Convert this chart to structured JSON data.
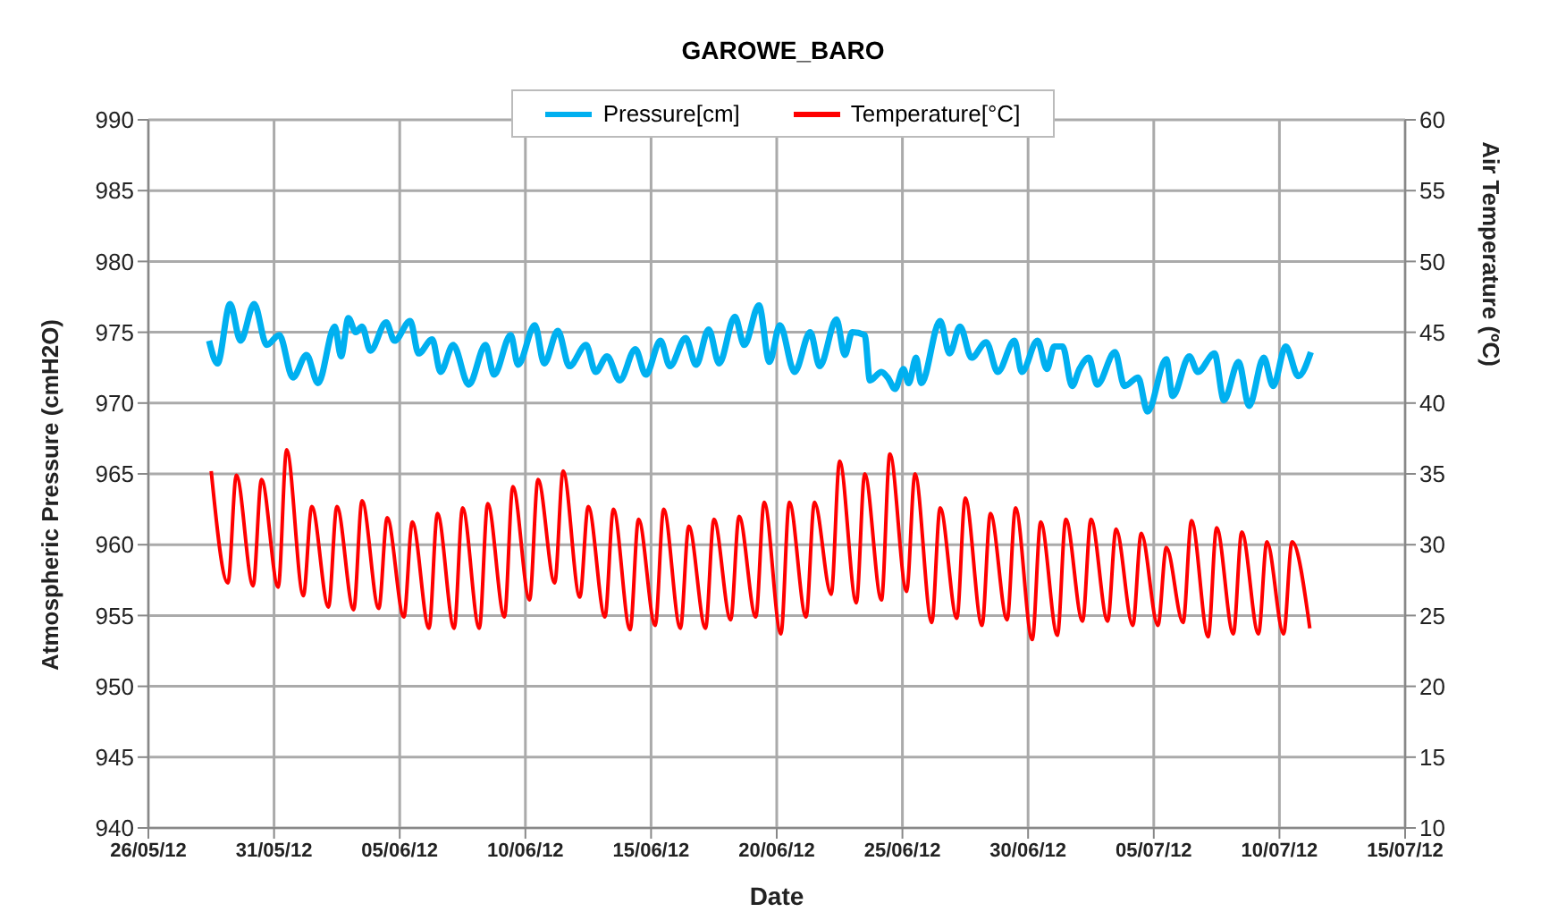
{
  "chart_data": {
    "type": "line",
    "title": "GAROWE_BARO",
    "xlabel": "Date",
    "ylabel": "Atmospheric  Pressure (cmH2O)",
    "y2label": "Air Temperature (ºC)",
    "xlim": [
      "--05-26",
      "--07-15"
    ],
    "xticks": [
      {
        "value": "--05-26",
        "label": "26/05/12"
      },
      {
        "value": "--05-31",
        "label": "31/05/12"
      },
      {
        "value": "--06-05",
        "label": "05/06/12"
      },
      {
        "value": "--06-10",
        "label": "10/06/12"
      },
      {
        "value": "--06-15",
        "label": "15/06/12"
      },
      {
        "value": "--06-20",
        "label": "20/06/12"
      },
      {
        "value": "--06-25",
        "label": "25/06/12"
      },
      {
        "value": "--06-30",
        "label": "30/06/12"
      },
      {
        "value": "--07-05",
        "label": "05/07/12"
      },
      {
        "value": "--07-10",
        "label": "10/07/12"
      },
      {
        "value": "--07-15",
        "label": "15/07/12"
      }
    ],
    "ylim": [
      940,
      990
    ],
    "yticks": [
      940,
      945,
      950,
      955,
      960,
      965,
      970,
      975,
      980,
      985,
      990
    ],
    "y2lim": [
      10,
      60
    ],
    "y2ticks": [
      10,
      15,
      20,
      25,
      30,
      35,
      40,
      45,
      50,
      55,
      60
    ],
    "grid": true,
    "legend": "top",
    "series": [
      {
        "name": "Pressure[cm]",
        "color": "#00b0f0",
        "x": [
          "--05-28T10:00",
          "--05-28T18:00",
          "--05-29T06:00",
          "--05-29T16:00",
          "--05-30T05:00",
          "--05-30T17:00",
          "--05-31T05:00",
          "--05-31T18:00",
          "--06-01T07:00",
          "--06-01T18:00",
          "--06-02T10:00",
          "--06-02T16:00",
          "--06-02T23:00",
          "--06-03T06:00",
          "--06-03T12:00",
          "--06-03T20:00",
          "--06-04T11:00",
          "--06-04T19:00",
          "--06-05T10:00",
          "--06-05T18:00",
          "--06-06T07:00",
          "--06-06T15:00",
          "--06-07T03:00",
          "--06-07T18:00",
          "--06-08T10:00",
          "--06-08T18:00",
          "--06-09T10:00",
          "--06-09T17:00",
          "--06-10T09:00",
          "--06-10T18:00",
          "--06-11T07:00",
          "--06-11T18:00",
          "--06-12T10:00",
          "--06-12T19:00",
          "--06-13T06:00",
          "--06-13T18:00",
          "--06-14T09:00",
          "--06-14T19:00",
          "--06-15T09:00",
          "--06-15T18:00",
          "--06-16T09:00",
          "--06-16T19:00",
          "--06-17T07:00",
          "--06-17T17:00",
          "--06-18T08:00",
          "--06-18T17:00",
          "--06-19T07:00",
          "--06-19T17:00",
          "--06-20T03:00",
          "--06-20T17:00",
          "--06-21T08:00",
          "--06-21T17:00",
          "--06-22T09:00",
          "--06-22T17:00",
          "--06-23T00:00",
          "--06-23T12:00",
          "--06-23T17:00",
          "--06-24T04:00",
          "--06-24T10:00",
          "--06-24T17:00",
          "--06-25T01:00",
          "--06-25T06:00",
          "--06-25T13:00",
          "--06-25T18:00",
          "--06-26T12:00",
          "--06-26T21:00",
          "--06-27T07:00",
          "--06-27T18:00",
          "--06-28T08:00",
          "--06-28T19:00",
          "--06-29T11:00",
          "--06-29T18:00",
          "--06-30T09:00",
          "--06-30T18:00",
          "--07-01T01:00",
          "--07-01T09:00",
          "--07-01T18:00",
          "--07-02T01:00",
          "--07-02T10:00",
          "--07-02T18:00",
          "--07-03T11:00",
          "--07-03T20:00",
          "--07-04T09:00",
          "--07-04T18:00",
          "--07-05T12:00",
          "--07-05T18:00",
          "--07-06T10:00",
          "--07-06T18:00",
          "--07-07T10:00",
          "--07-07T19:00",
          "--07-08T09:00",
          "--07-08T19:00",
          "--07-09T09:00",
          "--07-09T18:00",
          "--07-10T06:00",
          "--07-10T18:00",
          "--07-11T06:00"
        ],
        "values": [
          974.4,
          972.8,
          977.0,
          974.4,
          977.0,
          974.1,
          974.8,
          971.8,
          973.4,
          971.4,
          975.4,
          973.3,
          976.0,
          975.0,
          975.4,
          973.7,
          975.7,
          974.4,
          975.8,
          973.5,
          974.5,
          972.2,
          974.1,
          971.3,
          974.1,
          972.0,
          974.8,
          972.7,
          975.5,
          972.8,
          975.1,
          972.6,
          974.1,
          972.2,
          973.3,
          971.6,
          973.8,
          972.0,
          974.4,
          972.6,
          974.6,
          972.7,
          975.2,
          972.8,
          976.1,
          974.1,
          976.9,
          972.9,
          975.5,
          972.2,
          975.0,
          972.6,
          975.9,
          973.4,
          975.0,
          974.8,
          971.6,
          972.2,
          971.8,
          971.0,
          972.4,
          971.4,
          973.2,
          971.4,
          975.8,
          973.5,
          975.4,
          973.2,
          974.3,
          972.2,
          974.4,
          972.2,
          974.4,
          972.4,
          974.0,
          974.0,
          971.2,
          972.4,
          973.2,
          971.3,
          973.6,
          971.2,
          971.8,
          969.4,
          973.1,
          970.5,
          973.3,
          972.2,
          973.5,
          970.2,
          972.9,
          969.8,
          973.2,
          971.2,
          974.0,
          971.9,
          973.6
        ]
      },
      {
        "name": "Temperature[°C]",
        "color": "#ff0000",
        "axis": "y2",
        "x": [
          "--05-28T12:00",
          "--05-29T04:00",
          "--05-29T12:00",
          "--05-30T04:00",
          "--05-30T12:00",
          "--05-31T04:00",
          "--05-31T12:00",
          "--06-01T04:00",
          "--06-01T12:00",
          "--06-02T04:00",
          "--06-02T12:00",
          "--06-03T04:00",
          "--06-03T12:00",
          "--06-04T04:00",
          "--06-04T12:00",
          "--06-05T04:00",
          "--06-05T12:00",
          "--06-06T04:00",
          "--06-06T12:00",
          "--06-07T04:00",
          "--06-07T12:00",
          "--06-08T04:00",
          "--06-08T12:00",
          "--06-09T04:00",
          "--06-09T12:00",
          "--06-10T04:00",
          "--06-10T12:00",
          "--06-11T04:00",
          "--06-11T12:00",
          "--06-12T04:00",
          "--06-12T12:00",
          "--06-13T04:00",
          "--06-13T12:00",
          "--06-14T04:00",
          "--06-14T12:00",
          "--06-15T04:00",
          "--06-15T12:00",
          "--06-16T04:00",
          "--06-16T12:00",
          "--06-17T04:00",
          "--06-17T12:00",
          "--06-18T04:00",
          "--06-18T12:00",
          "--06-19T04:00",
          "--06-19T12:00",
          "--06-20T04:00",
          "--06-20T12:00",
          "--06-21T04:00",
          "--06-21T12:00",
          "--06-22T04:00",
          "--06-22T12:00",
          "--06-23T04:00",
          "--06-23T12:00",
          "--06-24T04:00",
          "--06-24T12:00",
          "--06-25T04:00",
          "--06-25T12:00",
          "--06-26T04:00",
          "--06-26T12:00",
          "--06-27T04:00",
          "--06-27T12:00",
          "--06-28T04:00",
          "--06-28T12:00",
          "--06-29T04:00",
          "--06-29T12:00",
          "--06-30T04:00",
          "--06-30T12:00",
          "--07-01T04:00",
          "--07-01T12:00",
          "--07-02T04:00",
          "--07-02T12:00",
          "--07-03T04:00",
          "--07-03T12:00",
          "--07-04T04:00",
          "--07-04T12:00",
          "--07-05T04:00",
          "--07-05T12:00",
          "--07-06T04:00",
          "--07-06T12:00",
          "--07-07T04:00",
          "--07-07T12:00",
          "--07-08T04:00",
          "--07-08T12:00",
          "--07-09T04:00",
          "--07-09T12:00",
          "--07-10T04:00",
          "--07-10T12:00",
          "--07-11T05:00"
        ],
        "values": [
          35.2,
          27.3,
          34.9,
          27.1,
          34.6,
          27.0,
          36.7,
          26.4,
          32.7,
          25.6,
          32.7,
          25.4,
          33.1,
          25.5,
          31.9,
          24.9,
          31.6,
          24.1,
          32.2,
          24.1,
          32.6,
          24.1,
          32.9,
          24.9,
          34.1,
          26.1,
          34.6,
          27.3,
          35.2,
          26.3,
          32.7,
          24.9,
          32.5,
          24.0,
          31.8,
          24.3,
          32.5,
          24.1,
          31.3,
          24.1,
          31.8,
          24.7,
          32.0,
          24.9,
          33.0,
          23.7,
          33.0,
          24.9,
          33.0,
          26.5,
          35.9,
          25.9,
          35.0,
          26.1,
          36.4,
          26.7,
          35.0,
          24.5,
          32.6,
          24.8,
          33.3,
          24.3,
          32.2,
          24.7,
          32.6,
          23.3,
          31.6,
          23.6,
          31.8,
          24.6,
          31.8,
          24.6,
          31.1,
          24.3,
          30.8,
          24.3,
          29.8,
          24.5,
          31.7,
          23.5,
          31.2,
          23.7,
          30.9,
          23.7,
          30.2,
          23.7,
          30.2,
          24.1
        ]
      }
    ]
  }
}
